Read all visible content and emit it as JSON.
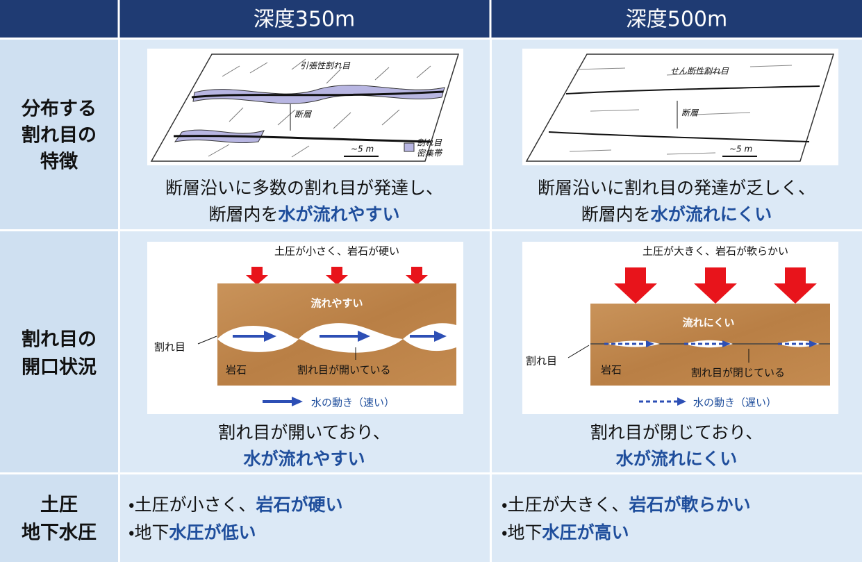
{
  "header": {
    "columns": [
      "深度350m",
      "深度500m"
    ]
  },
  "rows": [
    {
      "label": [
        "分布する",
        "割れ目の",
        "特徴"
      ],
      "cells": [
        {
          "figure": {
            "fracture_type": "引張性割れ目",
            "fault": "断層",
            "legend": [
              "割れ目",
              "密集帯"
            ],
            "scale": "~5 m"
          },
          "caption": [
            [
              {
                "text": "断層沿いに多数の割れ目が発達し、"
              }
            ],
            [
              {
                "text": "断層内を"
              },
              {
                "text": "水が流れやすい",
                "strong": true
              }
            ]
          ]
        },
        {
          "figure": {
            "fracture_type": "せん断性割れ目",
            "fault": "断層",
            "scale": "~5 m"
          },
          "caption": [
            [
              {
                "text": "断層沿いに割れ目の発達が乏しく、"
              }
            ],
            [
              {
                "text": "断層内を"
              },
              {
                "text": "水が流れにくい",
                "strong": true
              }
            ]
          ]
        }
      ]
    },
    {
      "label": [
        "割れ目の",
        "開口状況"
      ],
      "cells": [
        {
          "figure": {
            "load": "土圧が小さく、岩石が硬い",
            "flow": "流れやすい",
            "fracture": "割れ目",
            "rock": "岩石",
            "state": "割れ目が開いている",
            "legend": "水の動き（速い）"
          },
          "caption": [
            [
              {
                "text": "割れ目が開いており、"
              }
            ],
            [
              {
                "text": "水が流れやすい",
                "strong": true
              }
            ]
          ]
        },
        {
          "figure": {
            "load": "土圧が大きく、岩石が軟らかい",
            "flow": "流れにくい",
            "fracture": "割れ目",
            "rock": "岩石",
            "state": "割れ目が閉じている",
            "legend": "水の動き（遅い）"
          },
          "caption": [
            [
              {
                "text": "割れ目が閉じており、"
              }
            ],
            [
              {
                "text": "水が流れにくい",
                "strong": true
              }
            ]
          ]
        }
      ]
    },
    {
      "label": [
        "土圧",
        "地下水圧"
      ],
      "cells": [
        {
          "bullets": [
            [
              {
                "text": "・土圧が小さく、"
              },
              {
                "text": "岩石が硬い",
                "strong": true
              }
            ],
            [
              {
                "text": "・地下"
              },
              {
                "text": "水圧が低い",
                "strong": true
              }
            ]
          ]
        },
        {
          "bullets": [
            [
              {
                "text": "・土圧が大きく、"
              },
              {
                "text": "岩石が軟らかい",
                "strong": true
              }
            ],
            [
              {
                "text": "・地下"
              },
              {
                "text": "水圧が高い",
                "strong": true
              }
            ]
          ]
        }
      ]
    }
  ]
}
